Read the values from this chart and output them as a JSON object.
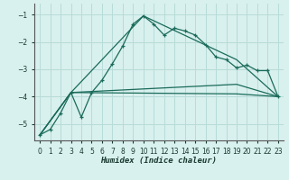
{
  "xlabel": "Humidex (Indice chaleur)",
  "bg_color": "#d8f0ee",
  "grid_color": "#b8dcd8",
  "line_color": "#1a6b5a",
  "xlim": [
    -0.5,
    23.5
  ],
  "ylim": [
    -5.6,
    -0.6
  ],
  "yticks": [
    -5,
    -4,
    -3,
    -2,
    -1
  ],
  "xticks": [
    0,
    1,
    2,
    3,
    4,
    5,
    6,
    7,
    8,
    9,
    10,
    11,
    12,
    13,
    14,
    15,
    16,
    17,
    18,
    19,
    20,
    21,
    22,
    23
  ],
  "series1_x": [
    0,
    1,
    2,
    3,
    4,
    5,
    6,
    7,
    8,
    9,
    10,
    11,
    12,
    13,
    14,
    15,
    16,
    17,
    18,
    19,
    20,
    21,
    22,
    23
  ],
  "series1_y": [
    -5.4,
    -5.2,
    -4.6,
    -3.85,
    -4.75,
    -3.85,
    -3.4,
    -2.8,
    -2.15,
    -1.35,
    -1.05,
    -1.35,
    -1.75,
    -1.5,
    -1.6,
    -1.75,
    -2.1,
    -2.55,
    -2.65,
    -2.95,
    -2.85,
    -3.05,
    -3.05,
    -4.0
  ],
  "series2_x": [
    0,
    3,
    10,
    19,
    23
  ],
  "series2_y": [
    -5.4,
    -3.85,
    -1.05,
    -2.65,
    -4.0
  ],
  "series3_x": [
    0,
    3,
    19,
    23
  ],
  "series3_y": [
    -5.4,
    -3.85,
    -3.55,
    -4.0
  ],
  "series4_x": [
    0,
    3,
    19,
    23
  ],
  "series4_y": [
    -5.4,
    -3.85,
    -3.9,
    -4.0
  ]
}
